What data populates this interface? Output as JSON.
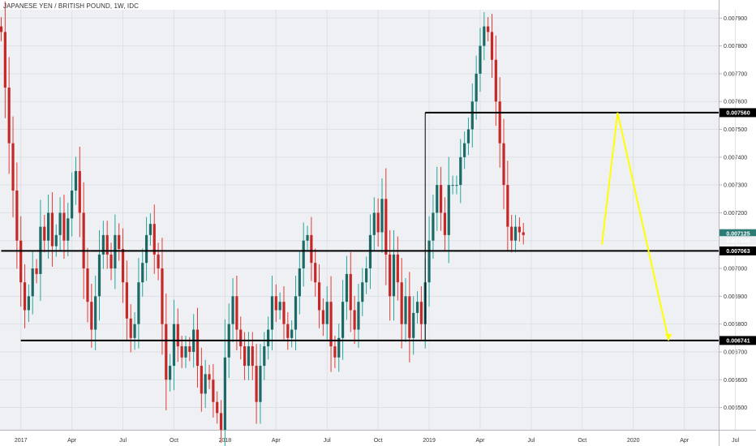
{
  "header": {
    "title": "JAPANESE YEN / BRITISH POUND, 1W, IDC"
  },
  "colors": {
    "background": "#ffffff",
    "plot_background": "#eef0f3",
    "grid": "#dde1e6",
    "up": "#26a69a",
    "up_body": "#1b6a66",
    "down": "#e53935",
    "down_body": "#c62828",
    "level_line": "#000000",
    "projection": "#ffff00",
    "current_price_tag": "#2c7b74"
  },
  "chart_data": {
    "type": "candlestick",
    "title": "JAPANESE YEN / BRITISH POUND, 1W, IDC",
    "xlabel": "",
    "ylabel": "",
    "ylim": [
      0.00642,
      0.00793
    ],
    "grid": true,
    "y_ticks": [
      "0.006500",
      "0.006600",
      "0.006700",
      "0.006800",
      "0.006900",
      "0.007000",
      "0.007100",
      "0.007200",
      "0.007300",
      "0.007400",
      "0.007500",
      "0.007600",
      "0.007700",
      "0.007800",
      "0.007900"
    ],
    "x_ticks": [
      {
        "label": "2017",
        "week": 5
      },
      {
        "label": "Apr",
        "week": 18
      },
      {
        "label": "Jul",
        "week": 31
      },
      {
        "label": "Oct",
        "week": 44
      },
      {
        "label": "2018",
        "week": 57
      },
      {
        "label": "Apr",
        "week": 70
      },
      {
        "label": "Jul",
        "week": 83
      },
      {
        "label": "Oct",
        "week": 96
      },
      {
        "label": "2019",
        "week": 109
      },
      {
        "label": "Apr",
        "week": 122
      },
      {
        "label": "Jul",
        "week": 135
      },
      {
        "label": "Oct",
        "week": 148
      },
      {
        "label": "2020",
        "week": 161
      },
      {
        "label": "Apr",
        "week": 174
      },
      {
        "label": "Jul",
        "week": 187
      }
    ],
    "price_tags": [
      {
        "label": "0.007560",
        "value": 0.00756,
        "style": "level"
      },
      {
        "label": "0.007125",
        "value": 0.007125,
        "style": "current"
      },
      {
        "label": "0.007100",
        "value": 0.0071,
        "style": "faded"
      },
      {
        "label": "0.007063",
        "value": 0.007063,
        "style": "level"
      },
      {
        "label": "0.006741",
        "value": 0.006741,
        "style": "level"
      }
    ],
    "levels": [
      {
        "value": 0.00756,
        "from_week": 108,
        "to_week": 196
      },
      {
        "value": 0.007063,
        "from_week": 0,
        "to_week": 196
      },
      {
        "value": 0.006741,
        "from_week": 5,
        "to_week": 196
      }
    ],
    "connector": {
      "week": 108,
      "from": 0.006741,
      "to": 0.00756
    },
    "projection": [
      {
        "week": 153,
        "value": 0.007085
      },
      {
        "week": 157,
        "value": 0.00756
      },
      {
        "week": 170,
        "value": 0.006741
      }
    ],
    "weekly_closes": [
      0.00785,
      0.00765,
      0.00745,
      0.00728,
      0.0071,
      0.00695,
      0.00685,
      0.0069,
      0.007,
      0.00698,
      0.00715,
      0.0071,
      0.0072,
      0.00708,
      0.00712,
      0.0072,
      0.0071,
      0.00718,
      0.00728,
      0.00735,
      0.0072,
      0.007,
      0.00688,
      0.00678,
      0.0069,
      0.00705,
      0.00712,
      0.00705,
      0.007,
      0.00712,
      0.00707,
      0.00695,
      0.00682,
      0.00675,
      0.0068,
      0.00695,
      0.00702,
      0.00712,
      0.00716,
      0.00705,
      0.007,
      0.0068,
      0.0066,
      0.00665,
      0.0068,
      0.00672,
      0.00668,
      0.00672,
      0.0067,
      0.00678,
      0.00665,
      0.00655,
      0.00662,
      0.0066,
      0.00652,
      0.00648,
      0.00642,
      0.00668,
      0.0068,
      0.0069,
      0.00678,
      0.00672,
      0.00665,
      0.00672,
      0.00665,
      0.00652,
      0.00665,
      0.00672,
      0.00678,
      0.0069,
      0.00685,
      0.00688,
      0.0068,
      0.00675,
      0.00678,
      0.0069,
      0.007,
      0.0071,
      0.00712,
      0.00702,
      0.00695,
      0.00685,
      0.0068,
      0.00688,
      0.00672,
      0.00668,
      0.00675,
      0.00688,
      0.00698,
      0.00685,
      0.00678,
      0.00688,
      0.00695,
      0.007,
      0.00712,
      0.0072,
      0.00713,
      0.00725,
      0.00705,
      0.0069,
      0.00705,
      0.00695,
      0.0068,
      0.0069,
      0.00675,
      0.00684,
      0.00688,
      0.0068,
      0.00695,
      0.0071,
      0.0072,
      0.0073,
      0.0072,
      0.00712,
      0.0073,
      0.0073,
      0.0073,
      0.0074,
      0.00745,
      0.0075,
      0.0076,
      0.0077,
      0.0078,
      0.00787,
      0.00785,
      0.00775,
      0.0076,
      0.00745,
      0.0073,
      0.00715,
      0.0071,
      0.00715,
      0.00713,
      0.00712
    ]
  }
}
